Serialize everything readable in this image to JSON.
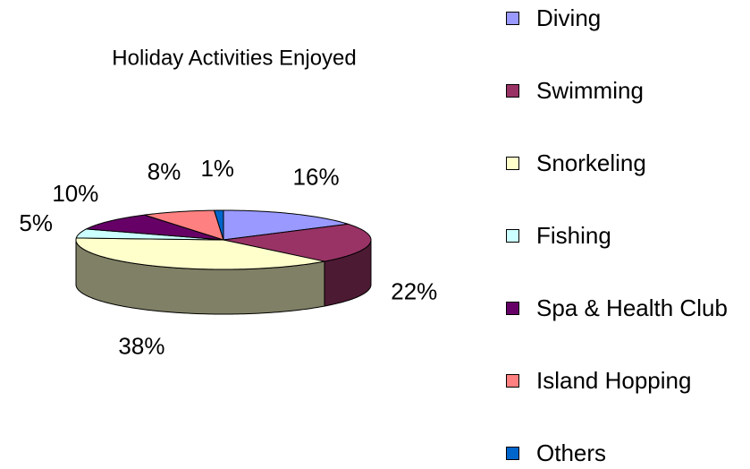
{
  "chart_data": {
    "type": "pie3d",
    "title": "Holiday Activities Enjoyed",
    "categories": [
      "Diving",
      "Swimming",
      "Snorkeling",
      "Fishing",
      "Spa & Health Club",
      "Island Hopping",
      "Others"
    ],
    "values": [
      16,
      22,
      38,
      5,
      10,
      8,
      1
    ],
    "value_labels": [
      "16%",
      "22%",
      "38%",
      "5%",
      "10%",
      "8%",
      "1%"
    ],
    "colors": [
      "#9999ff",
      "#993366",
      "#ffffcc",
      "#ccffff",
      "#660066",
      "#ff8080",
      "#0066cc"
    ],
    "legend": "right"
  }
}
